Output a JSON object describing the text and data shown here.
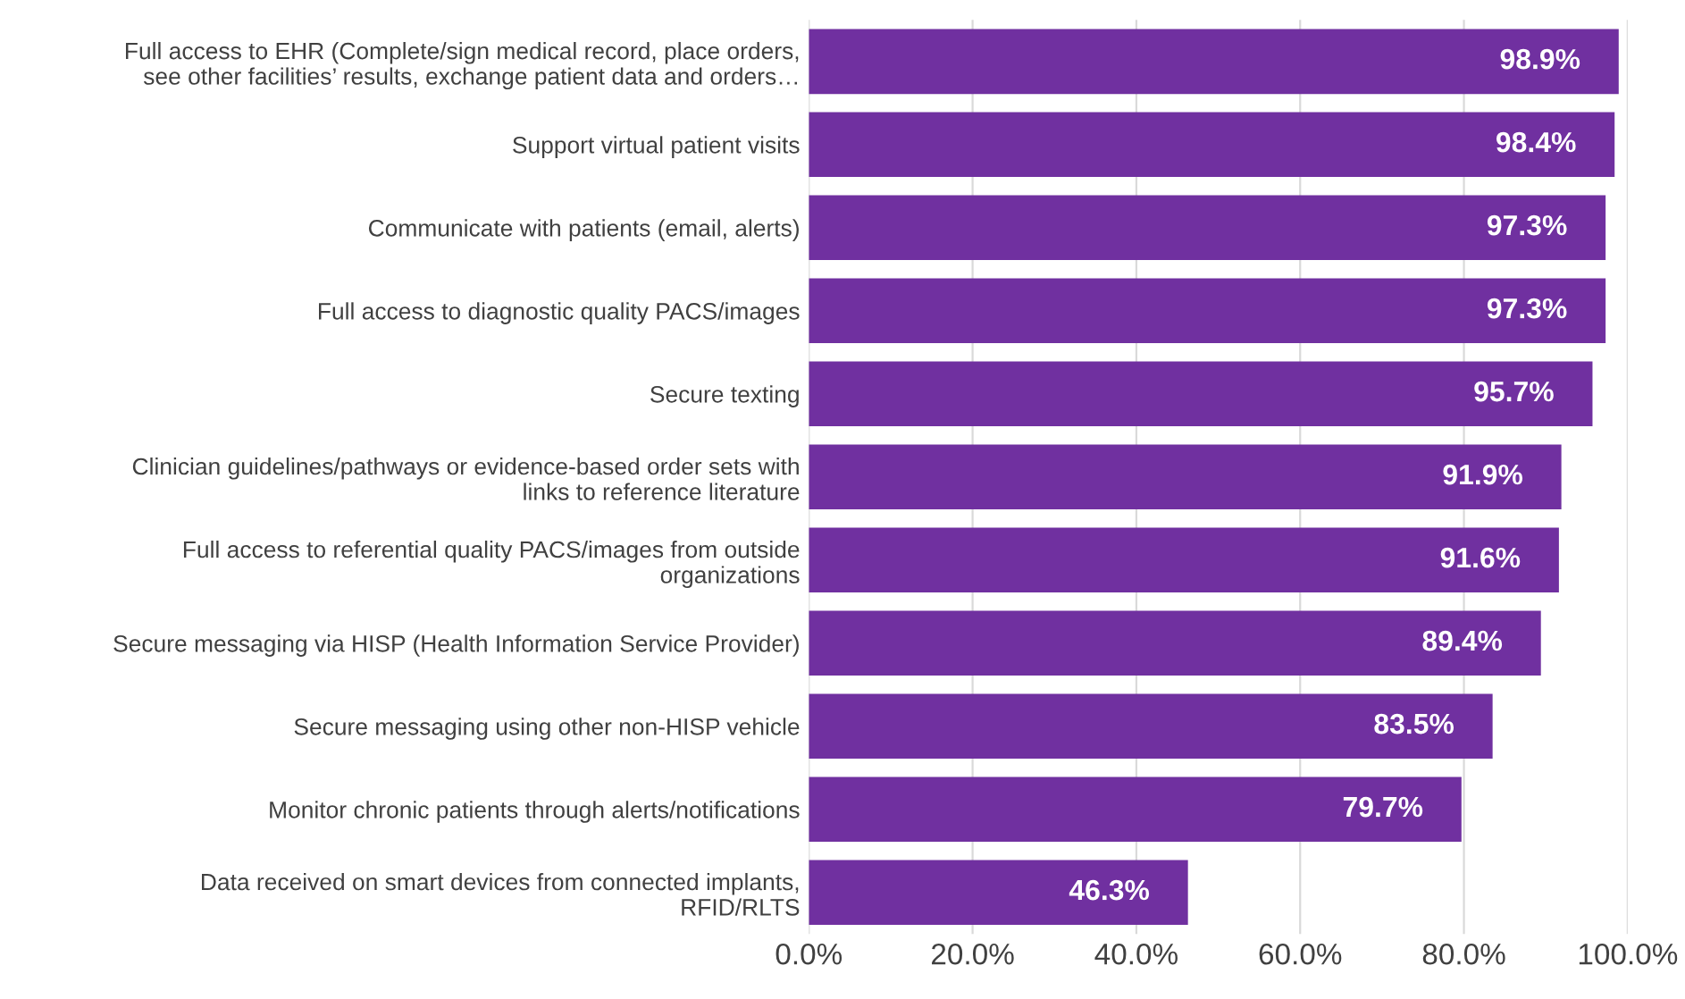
{
  "chart_data": {
    "type": "bar",
    "orientation": "horizontal",
    "categories": [
      "Full access to EHR (Complete/sign medical record, place orders,\nsee other facilities’ results, exchange patient data and orders…",
      "Support virtual patient visits",
      "Communicate with patients (email, alerts)",
      "Full access to diagnostic quality PACS/images",
      "Secure texting",
      "Clinician guidelines/pathways or evidence-based order sets with\nlinks to reference literature",
      "Full access to referential quality PACS/images from outside\norganizations",
      "Secure messaging via HISP (Health Information Service Provider)",
      "Secure messaging using other non-HISP vehicle",
      "Monitor chronic patients through alerts/notifications",
      "Data received on smart devices from connected implants,\nRFID/RLTS"
    ],
    "values": [
      98.9,
      98.4,
      97.3,
      97.3,
      95.7,
      91.9,
      91.6,
      89.4,
      83.5,
      79.7,
      46.3
    ],
    "value_labels": [
      "98.9%",
      "98.4%",
      "97.3%",
      "97.3%",
      "95.7%",
      "91.9%",
      "91.6%",
      "89.4%",
      "83.5%",
      "79.7%",
      "46.3%"
    ],
    "color": "#7030a0",
    "xlim": [
      0,
      100
    ],
    "xticks": [
      {
        "value": 0,
        "label": "0.0%"
      },
      {
        "value": 20,
        "label": "20.0%"
      },
      {
        "value": 40,
        "label": "40.0%"
      },
      {
        "value": 60,
        "label": "60.0%"
      },
      {
        "value": 80,
        "label": "80.0%"
      },
      {
        "value": 100,
        "label": "100.0%"
      }
    ],
    "grid": "x",
    "legend": false
  }
}
